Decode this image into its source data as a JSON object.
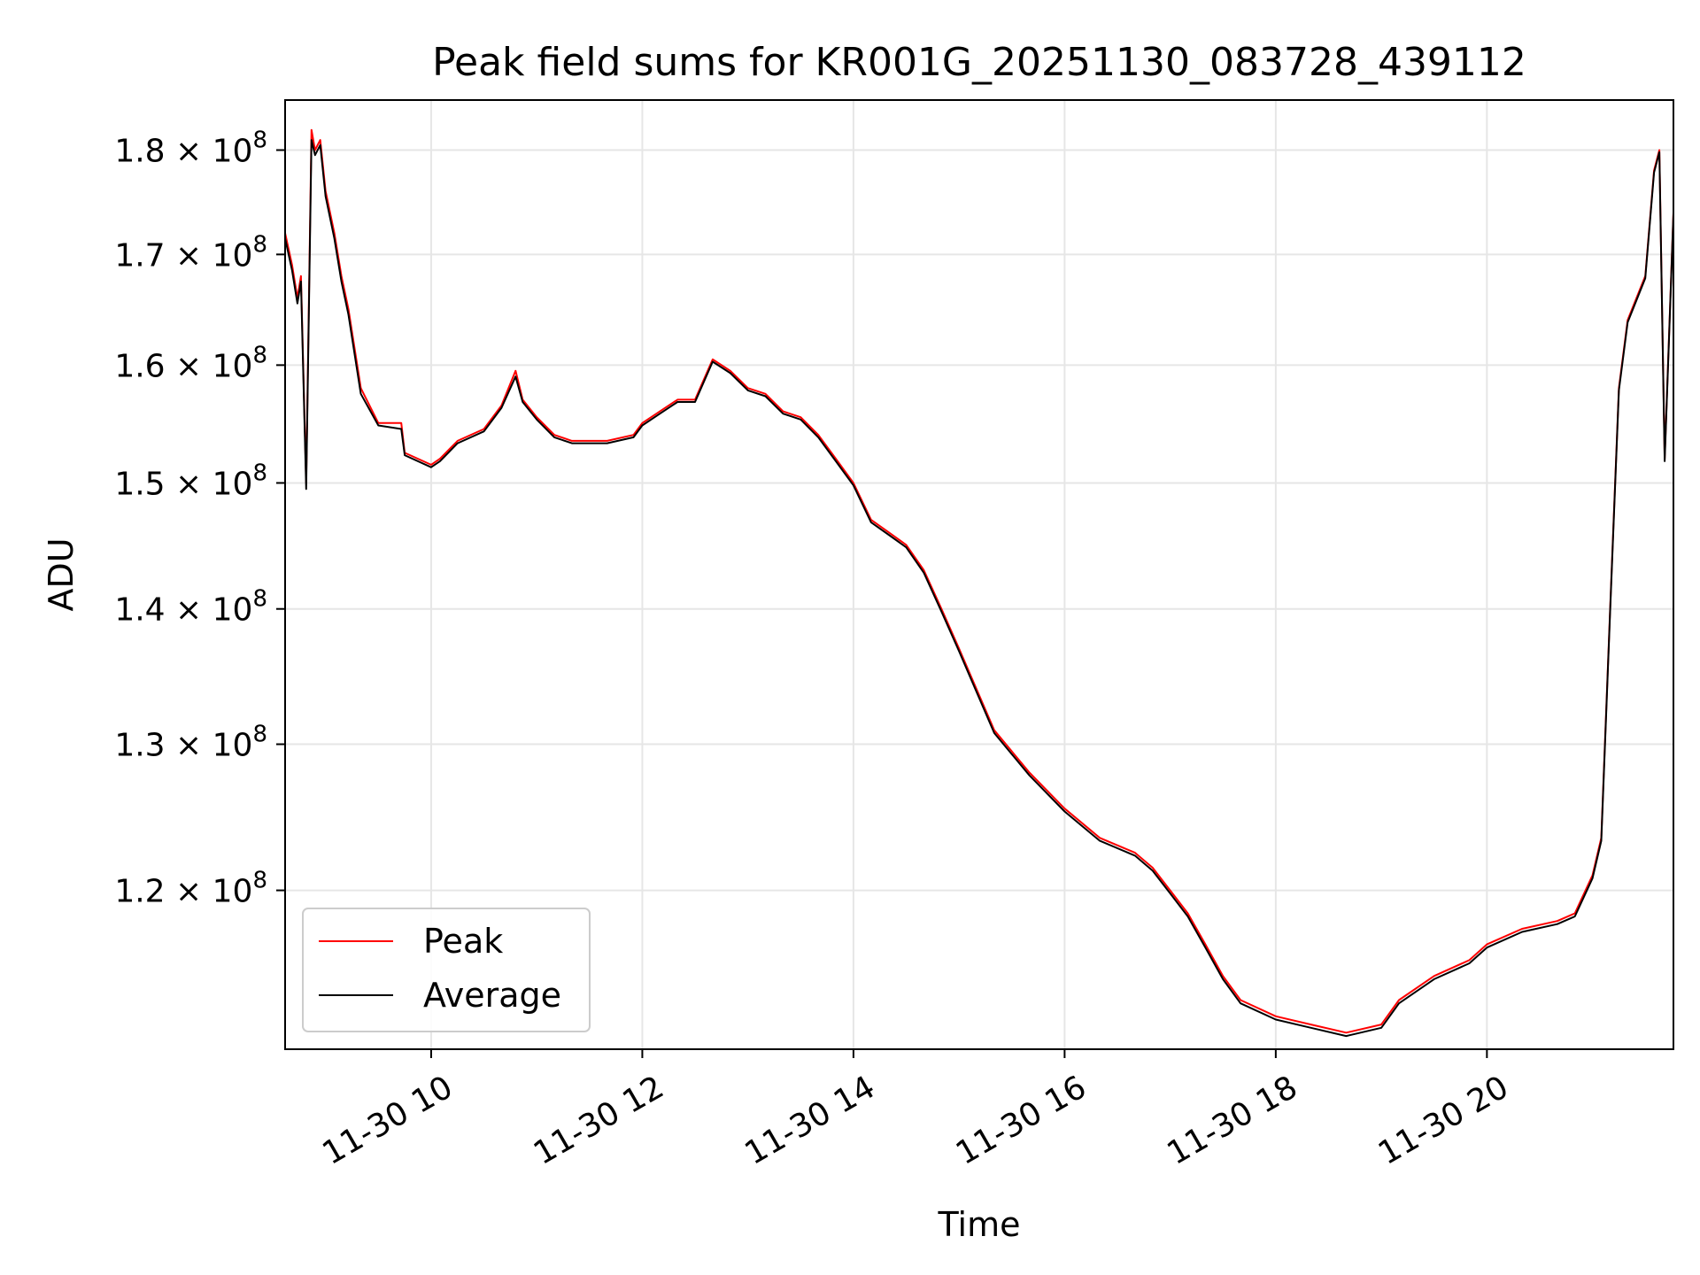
{
  "chart_data": {
    "type": "line",
    "title": "Peak field sums for KR001G_20251130_083728_439112",
    "xlabel": "Time",
    "ylabel": "ADU",
    "yscale": "log",
    "xlim": [
      "2025-11-30T08:37",
      "2025-11-30T21:46"
    ],
    "ylim": [
      110000000,
      185000000
    ],
    "grid": true,
    "legend_position": "lower-left",
    "x_ticks": [
      {
        "value": "2025-11-30T10:00",
        "label": "11-30 10"
      },
      {
        "value": "2025-11-30T12:00",
        "label": "11-30 12"
      },
      {
        "value": "2025-11-30T14:00",
        "label": "11-30 14"
      },
      {
        "value": "2025-11-30T16:00",
        "label": "11-30 16"
      },
      {
        "value": "2025-11-30T18:00",
        "label": "11-30 18"
      },
      {
        "value": "2025-11-30T20:00",
        "label": "11-30 20"
      }
    ],
    "y_ticks": [
      {
        "value": 120000000,
        "mantissa": "1.2"
      },
      {
        "value": 130000000,
        "mantissa": "1.3"
      },
      {
        "value": 140000000,
        "mantissa": "1.4"
      },
      {
        "value": 150000000,
        "mantissa": "1.5"
      },
      {
        "value": 160000000,
        "mantissa": "1.6"
      },
      {
        "value": 170000000,
        "mantissa": "1.7"
      },
      {
        "value": 180000000,
        "mantissa": "1.8"
      }
    ],
    "y_tick_base": "× 10",
    "y_tick_exponent": "8",
    "x": [
      "2025-11-30T08:37",
      "2025-11-30T08:41",
      "2025-11-30T08:44",
      "2025-11-30T08:46",
      "2025-11-30T08:49",
      "2025-11-30T08:52",
      "2025-11-30T08:54",
      "2025-11-30T08:57",
      "2025-11-30T09:00",
      "2025-11-30T09:05",
      "2025-11-30T09:09",
      "2025-11-30T09:13",
      "2025-11-30T09:20",
      "2025-11-30T09:30",
      "2025-11-30T09:43",
      "2025-11-30T09:45",
      "2025-11-30T10:00",
      "2025-11-30T10:05",
      "2025-11-30T10:15",
      "2025-11-30T10:30",
      "2025-11-30T10:40",
      "2025-11-30T10:48",
      "2025-11-30T10:52",
      "2025-11-30T11:00",
      "2025-11-30T11:10",
      "2025-11-30T11:20",
      "2025-11-30T11:40",
      "2025-11-30T11:55",
      "2025-11-30T12:00",
      "2025-11-30T12:10",
      "2025-11-30T12:20",
      "2025-11-30T12:30",
      "2025-11-30T12:40",
      "2025-11-30T12:50",
      "2025-11-30T13:00",
      "2025-11-30T13:10",
      "2025-11-30T13:20",
      "2025-11-30T13:30",
      "2025-11-30T13:40",
      "2025-11-30T13:50",
      "2025-11-30T14:00",
      "2025-11-30T14:10",
      "2025-11-30T14:20",
      "2025-11-30T14:30",
      "2025-11-30T14:40",
      "2025-11-30T14:50",
      "2025-11-30T15:00",
      "2025-11-30T15:20",
      "2025-11-30T15:40",
      "2025-11-30T16:00",
      "2025-11-30T16:20",
      "2025-11-30T16:40",
      "2025-11-30T16:50",
      "2025-11-30T17:00",
      "2025-11-30T17:10",
      "2025-11-30T17:20",
      "2025-11-30T17:30",
      "2025-11-30T17:40",
      "2025-11-30T18:00",
      "2025-11-30T18:20",
      "2025-11-30T18:40",
      "2025-11-30T19:00",
      "2025-11-30T19:10",
      "2025-11-30T19:30",
      "2025-11-30T19:50",
      "2025-11-30T20:00",
      "2025-11-30T20:20",
      "2025-11-30T20:40",
      "2025-11-30T20:50",
      "2025-11-30T21:00",
      "2025-11-30T21:05",
      "2025-11-30T21:10",
      "2025-11-30T21:15",
      "2025-11-30T21:20",
      "2025-11-30T21:30",
      "2025-11-30T21:35",
      "2025-11-30T21:38",
      "2025-11-30T21:41",
      "2025-11-30T21:46"
    ],
    "series": [
      {
        "name": "Peak",
        "color": "#ff0000",
        "values": [
          172000000,
          169000000,
          166000000,
          168000000,
          150000000,
          182000000,
          180000000,
          181000000,
          176000000,
          172000000,
          168000000,
          165000000,
          158000000,
          155000000,
          155000000,
          152500000,
          151500000,
          152000000,
          153500000,
          154500000,
          156500000,
          159500000,
          157000000,
          155500000,
          154000000,
          153500000,
          153500000,
          154000000,
          155000000,
          156000000,
          157000000,
          157000000,
          160500000,
          159500000,
          158000000,
          157500000,
          156000000,
          155500000,
          154000000,
          152000000,
          150000000,
          147000000,
          146000000,
          145000000,
          143000000,
          140000000,
          137000000,
          131000000,
          128000000,
          125500000,
          123500000,
          122500000,
          121500000,
          120000000,
          118500000,
          116500000,
          114500000,
          113000000,
          112000000,
          111500000,
          111000000,
          111500000,
          113000000,
          114500000,
          115500000,
          116500000,
          117500000,
          118000000,
          118500000,
          121000000,
          123500000,
          140000000,
          158000000,
          164000000,
          168000000,
          178000000,
          180000000,
          152000000,
          174000000
        ]
      },
      {
        "name": "Average",
        "color": "#000000",
        "values": [
          171500000,
          168500000,
          165500000,
          167500000,
          149500000,
          181000000,
          179500000,
          180500000,
          175500000,
          171500000,
          167500000,
          164500000,
          157500000,
          154800000,
          154500000,
          152300000,
          151300000,
          151800000,
          153300000,
          154300000,
          156300000,
          159000000,
          156800000,
          155300000,
          153800000,
          153300000,
          153300000,
          153800000,
          154800000,
          155800000,
          156800000,
          156800000,
          160300000,
          159300000,
          157800000,
          157300000,
          155800000,
          155300000,
          153800000,
          151800000,
          149800000,
          146800000,
          145800000,
          144800000,
          142800000,
          139800000,
          136800000,
          130800000,
          127800000,
          125300000,
          123300000,
          122300000,
          121300000,
          119800000,
          118300000,
          116300000,
          114300000,
          112800000,
          111800000,
          111300000,
          110800000,
          111300000,
          112800000,
          114300000,
          115300000,
          116300000,
          117300000,
          117800000,
          118300000,
          120800000,
          123300000,
          139800000,
          157800000,
          163800000,
          167800000,
          177800000,
          179800000,
          151800000,
          173800000
        ]
      }
    ]
  }
}
